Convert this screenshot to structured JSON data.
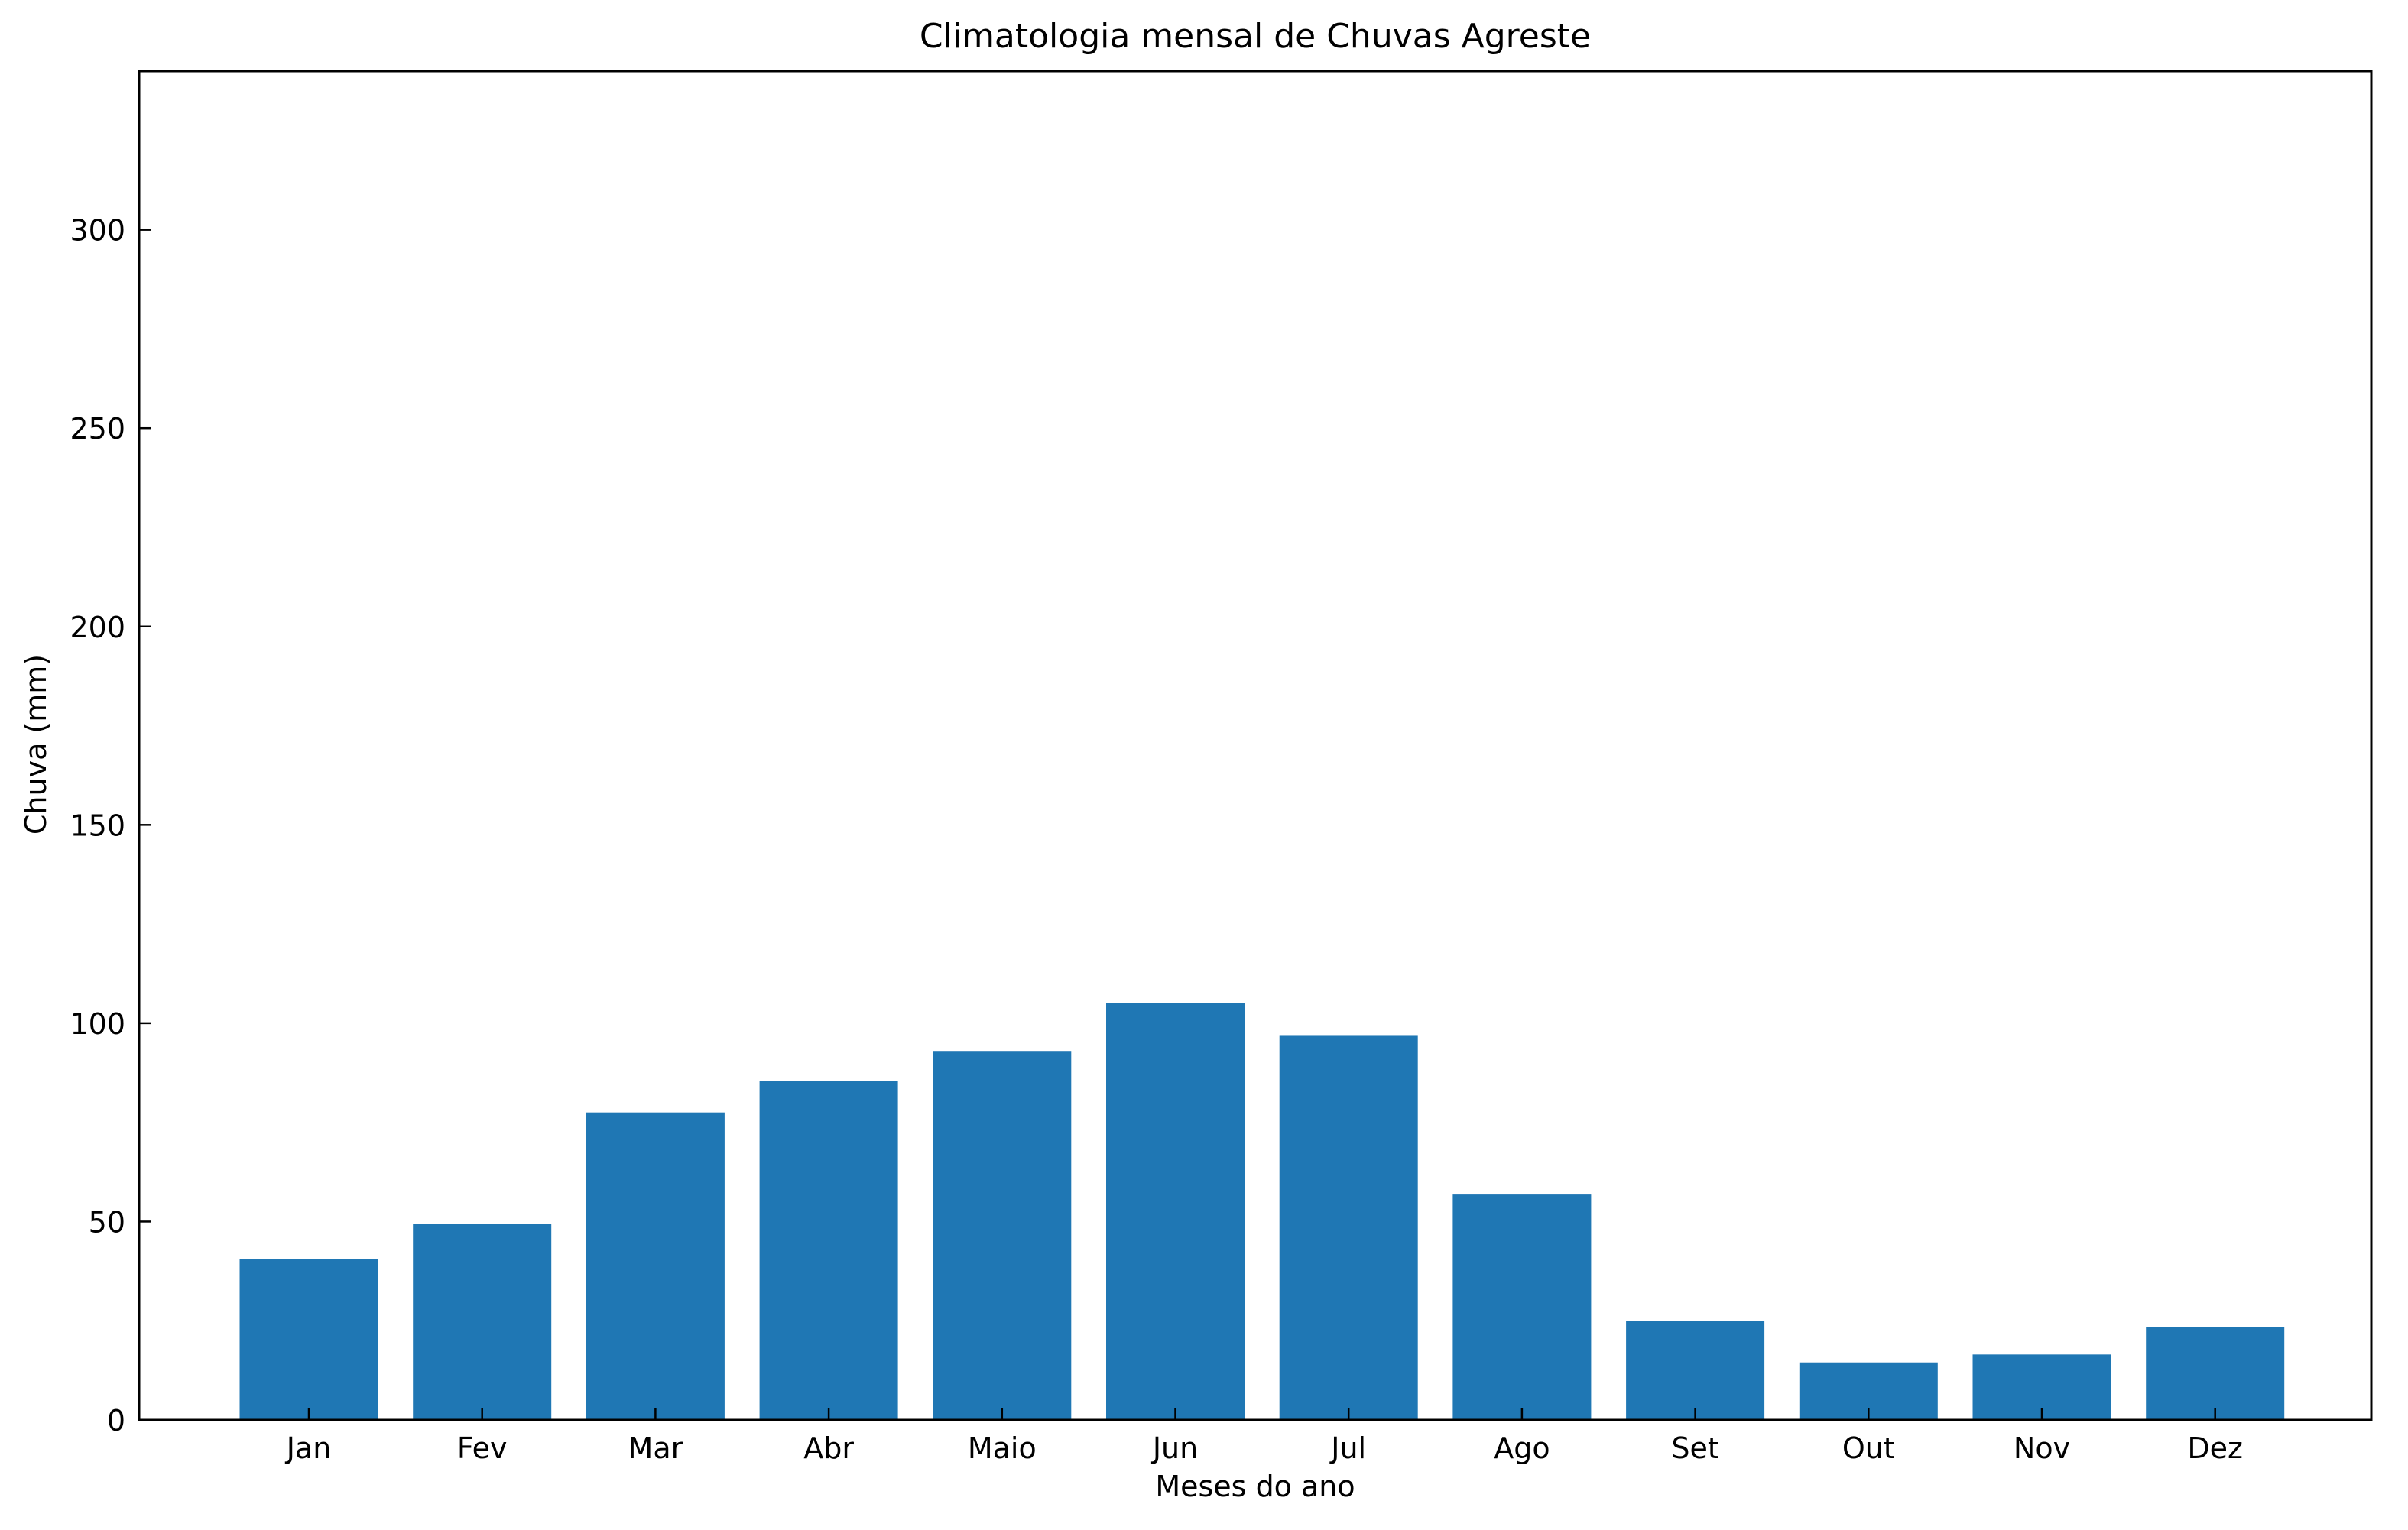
{
  "chart_data": {
    "type": "bar",
    "title": "Climatologia mensal de Chuvas Agreste",
    "xlabel": "Meses do ano",
    "ylabel": "Chuva (mm)",
    "categories": [
      "Jan",
      "Fev",
      "Mar",
      "Abr",
      "Maio",
      "Jun",
      "Jul",
      "Ago",
      "Set",
      "Out",
      "Nov",
      "Dez"
    ],
    "values": [
      40.5,
      49.5,
      77.5,
      85.5,
      93,
      105,
      97,
      57,
      25,
      14.5,
      16.5,
      23.5
    ],
    "ylim": [
      0,
      340
    ],
    "yticks": [
      0,
      50,
      100,
      150,
      200,
      250,
      300
    ],
    "grid": false,
    "bar_color": "#1f77b4"
  }
}
